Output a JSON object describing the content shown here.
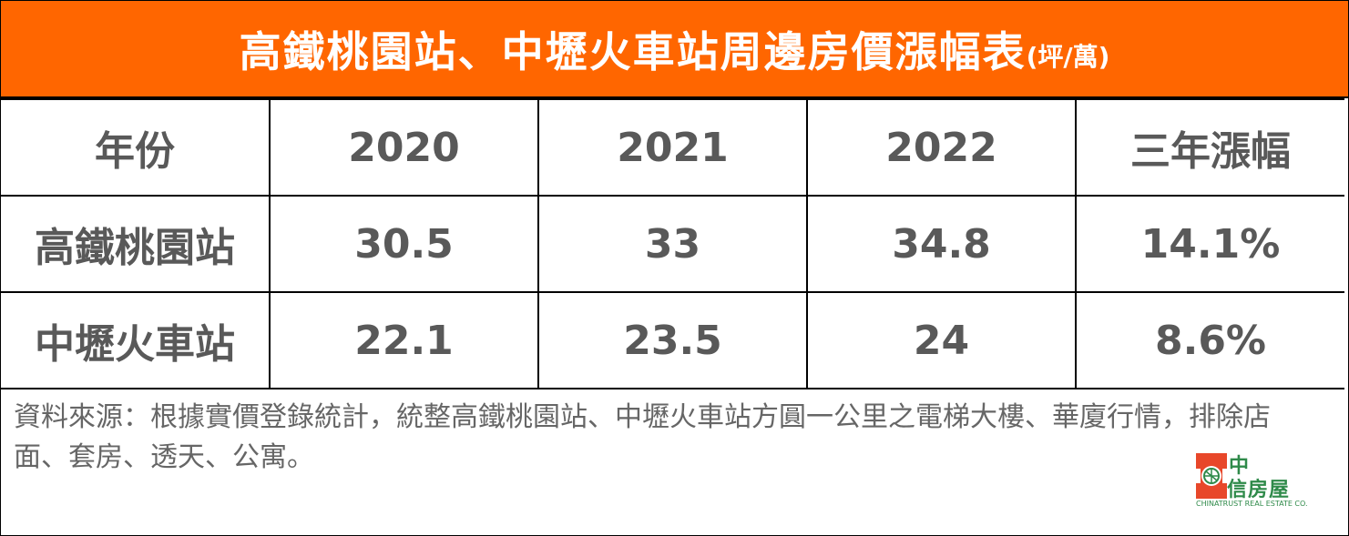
{
  "header": {
    "title": "高鐵桃園站、中壢火車站周邊房價漲幅表",
    "unit": "(坪/萬)"
  },
  "table": {
    "columns": [
      "年份",
      "2020",
      "2021",
      "2022",
      "三年漲幅"
    ],
    "rows": [
      [
        "高鐵桃園站",
        "30.5",
        "33",
        "34.8",
        "14.1%"
      ],
      [
        "中壢火車站",
        "22.1",
        "23.5",
        "24",
        "8.6%"
      ]
    ]
  },
  "note": "資料來源：根據實價登錄統計，統整高鐵桃園站、中壢火車站方圓一公里之電梯大樓、華廈行情，排除店面、套房、透天、公寓。",
  "logo": {
    "name_top": "中",
    "name_bottom": "信房屋",
    "english": "CHINATRUST REAL ESTATE CO."
  }
}
